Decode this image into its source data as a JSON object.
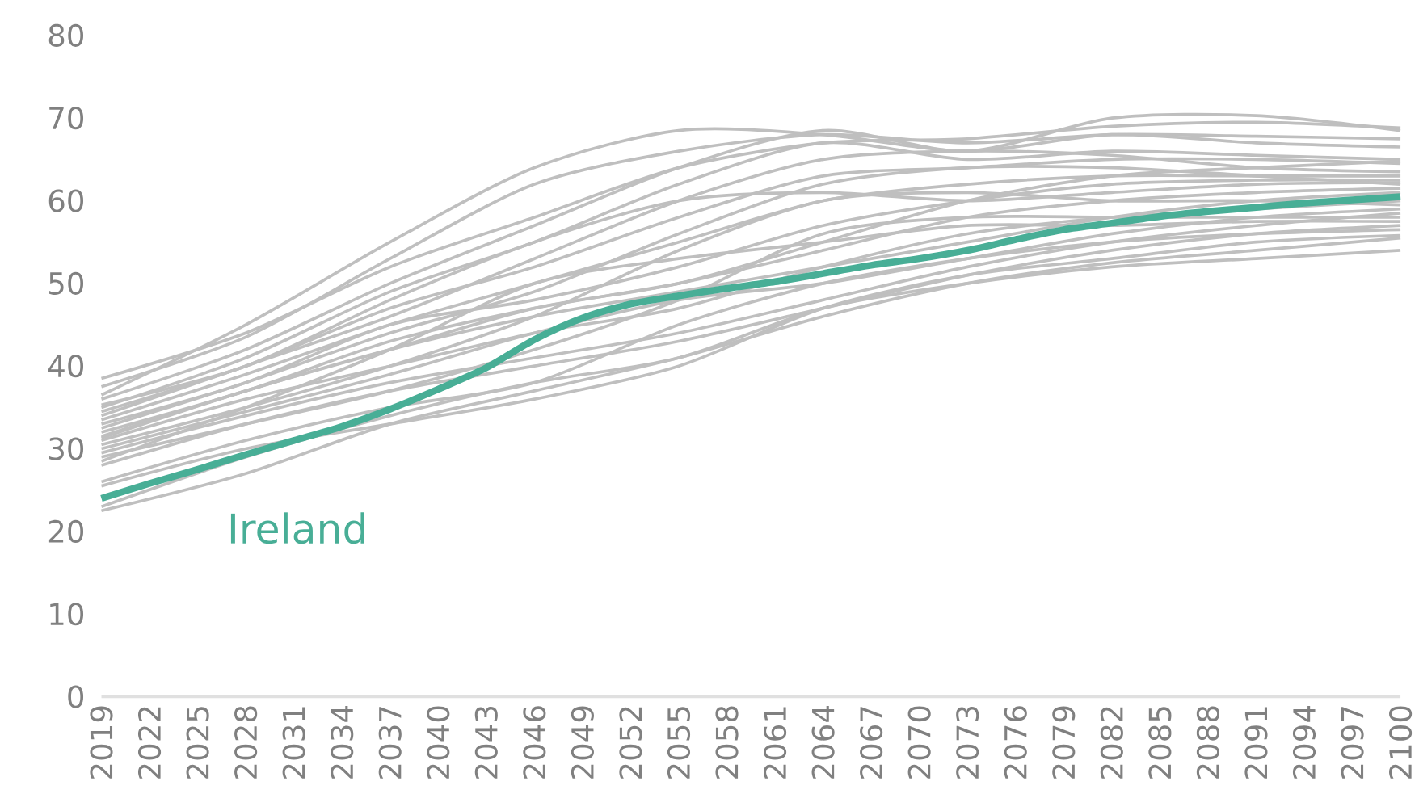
{
  "chart_data": {
    "type": "line",
    "x": [
      2019,
      2028,
      2037,
      2046,
      2055,
      2064,
      2073,
      2082,
      2091,
      2100
    ],
    "xlim": [
      2019,
      2100
    ],
    "xticks": [
      2019,
      2022,
      2025,
      2028,
      2031,
      2034,
      2037,
      2040,
      2043,
      2046,
      2049,
      2052,
      2055,
      2058,
      2061,
      2064,
      2067,
      2070,
      2073,
      2076,
      2079,
      2082,
      2085,
      2088,
      2091,
      2094,
      2097,
      2100
    ],
    "ylim": [
      0,
      80
    ],
    "yticks": [
      0,
      10,
      20,
      30,
      40,
      50,
      60,
      70,
      80
    ],
    "grid": false,
    "legend": false,
    "series": [
      {
        "color": "#bfbfbf",
        "values": [
          38.5,
          44,
          52,
          58,
          64,
          67,
          67.5,
          69,
          69.5,
          68.8
        ]
      },
      {
        "color": "#bfbfbf",
        "values": [
          37.5,
          43.5,
          53,
          62,
          66,
          68,
          67,
          68,
          67.8,
          67.5
        ]
      },
      {
        "color": "#bfbfbf",
        "values": [
          36.5,
          45,
          55,
          64,
          68.5,
          68,
          66,
          68,
          67,
          66.5
        ]
      },
      {
        "color": "#bfbfbf",
        "values": [
          36,
          42,
          50,
          57,
          64,
          68.5,
          66,
          70,
          70.3,
          68.5
        ]
      },
      {
        "color": "#bfbfbf",
        "values": [
          35,
          41,
          49,
          55,
          62,
          67,
          65,
          66,
          65.5,
          65
        ]
      },
      {
        "color": "#bfbfbf",
        "values": [
          34.5,
          40,
          47,
          52,
          58,
          63,
          64,
          65,
          65,
          64.5
        ]
      },
      {
        "color": "#bfbfbf",
        "values": [
          34,
          40,
          46,
          53,
          60,
          65,
          66,
          65.5,
          64,
          63.5
        ]
      },
      {
        "color": "#bfbfbf",
        "values": [
          33.5,
          39,
          45,
          50,
          55,
          60,
          62,
          63,
          63,
          63
        ]
      },
      {
        "color": "#bfbfbf",
        "values": [
          33,
          38,
          45,
          48,
          52,
          57,
          60,
          62,
          62.5,
          62.5
        ]
      },
      {
        "color": "#bfbfbf",
        "values": [
          32.5,
          38,
          44,
          49,
          56,
          62,
          64,
          64,
          63,
          62
        ]
      },
      {
        "color": "#bfbfbf",
        "values": [
          32,
          37,
          43,
          47,
          50,
          54,
          58,
          60,
          61,
          61.5
        ]
      },
      {
        "color": "#bfbfbf",
        "values": [
          31.5,
          37,
          42,
          46,
          49,
          52,
          55,
          58,
          60,
          61
        ]
      },
      {
        "color": "#bfbfbf",
        "values": [
          31,
          36,
          40,
          44,
          47,
          52,
          56,
          58,
          59,
          60
        ]
      },
      {
        "color": "#bfbfbf",
        "values": [
          30.5,
          35,
          40,
          46,
          54,
          60,
          61,
          60,
          60,
          59.5
        ]
      },
      {
        "color": "#bfbfbf",
        "values": [
          30,
          34.5,
          39,
          44,
          48,
          50,
          53,
          56,
          58,
          59
        ]
      },
      {
        "color": "#bfbfbf",
        "values": [
          29.5,
          34,
          38,
          41,
          44,
          48,
          52,
          55,
          57,
          58.5
        ]
      },
      {
        "color": "#bfbfbf",
        "values": [
          29,
          33,
          37,
          42,
          48,
          56,
          58,
          58,
          58,
          58
        ]
      },
      {
        "color": "#bfbfbf",
        "values": [
          28.5,
          35,
          42,
          50,
          53,
          55,
          57,
          57,
          57.5,
          57.5
        ]
      },
      {
        "color": "#bfbfbf",
        "values": [
          28,
          33,
          37,
          40,
          43,
          47,
          51,
          54,
          56,
          57
        ]
      },
      {
        "color": "#bfbfbf",
        "values": [
          26,
          31,
          35,
          38,
          45,
          50,
          53,
          55,
          56,
          56.5
        ]
      },
      {
        "color": "#bfbfbf",
        "values": [
          25.5,
          30,
          33,
          36,
          40,
          47,
          51,
          53,
          55,
          55.8
        ]
      },
      {
        "color": "#bfbfbf",
        "values": [
          23,
          29,
          34,
          38,
          41,
          47,
          50,
          52,
          53,
          54
        ]
      },
      {
        "color": "#bfbfbf",
        "values": [
          22.5,
          27,
          33,
          37,
          41,
          46,
          50,
          52.5,
          54,
          55.5
        ]
      },
      {
        "color": "#bfbfbf",
        "values": [
          31.3,
          37,
          42,
          47,
          50,
          55,
          60,
          63,
          64,
          64.8
        ]
      },
      {
        "color": "#bfbfbf",
        "values": [
          35.3,
          40,
          48,
          55,
          60,
          61,
          60,
          61,
          62,
          62.2
        ]
      },
      {
        "name": "Ireland",
        "color": "#48ae96",
        "x": [
          2019,
          2022,
          2025,
          2028,
          2031,
          2034,
          2037,
          2040,
          2043,
          2046,
          2049,
          2052,
          2055,
          2058,
          2061,
          2064,
          2067,
          2070,
          2073,
          2076,
          2079,
          2082,
          2085,
          2088,
          2091,
          2094,
          2097,
          2100
        ],
        "values": [
          24,
          25.8,
          27.5,
          29.3,
          31,
          32.7,
          34.8,
          37.2,
          39.8,
          43.2,
          45.8,
          47.5,
          48.5,
          49.4,
          50.2,
          51.2,
          52.2,
          53,
          54,
          55.3,
          56.5,
          57.3,
          58.1,
          58.7,
          59.2,
          59.7,
          60.1,
          60.5
        ]
      }
    ]
  }
}
